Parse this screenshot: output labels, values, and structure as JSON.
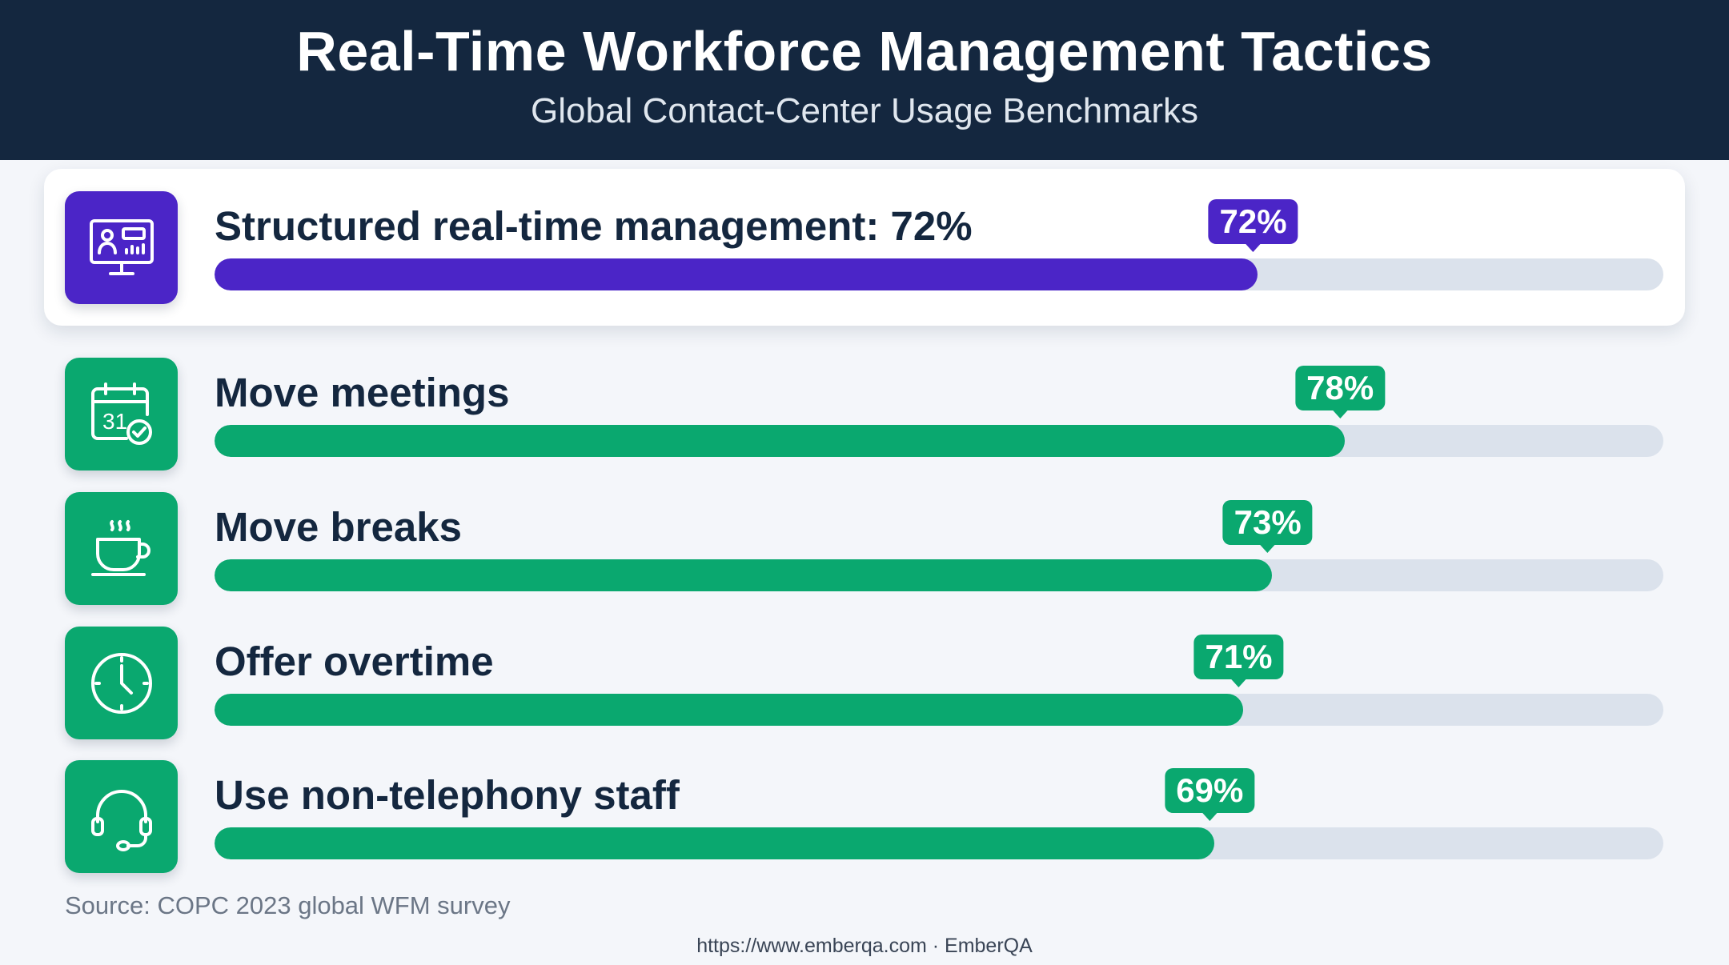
{
  "header": {
    "title": "Real-Time Workforce Management Tactics",
    "subtitle": "Global Contact-Center Usage Benchmarks"
  },
  "colors": {
    "header_bg": "#14273f",
    "featured": "#4b25c7",
    "standard": "#0aa86f",
    "track": "#dbe2ec"
  },
  "chart_data": {
    "type": "bar",
    "orientation": "horizontal",
    "title": "Real-Time Workforce Management Tactics",
    "subtitle": "Global Contact-Center Usage Benchmarks",
    "xlim": [
      0,
      100
    ],
    "unit": "%",
    "items": [
      {
        "label": "Structured real-time management: 72%",
        "value": 72,
        "value_label": "72%",
        "icon": "monitor-dashboard-icon",
        "featured": true
      },
      {
        "label": "Move meetings",
        "value": 78,
        "value_label": "78%",
        "icon": "calendar-check-icon",
        "featured": false
      },
      {
        "label": "Move breaks",
        "value": 73,
        "value_label": "73%",
        "icon": "coffee-cup-icon",
        "featured": false
      },
      {
        "label": "Offer overtime",
        "value": 71,
        "value_label": "71%",
        "icon": "clock-icon",
        "featured": false
      },
      {
        "label": "Use non-telephony staff",
        "value": 69,
        "value_label": "69%",
        "icon": "headset-icon",
        "featured": false
      }
    ]
  },
  "source": "Source: COPC 2023 global WFM survey",
  "footer": "https://www.emberqa.com · EmberQA"
}
